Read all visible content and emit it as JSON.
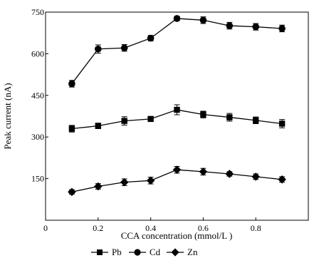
{
  "chart_data": {
    "type": "line",
    "xlabel": "CCA concentration (mmol/L )",
    "ylabel": "Peak current (nA)",
    "xlim": [
      0,
      1.0
    ],
    "ylim": [
      0,
      750
    ],
    "x_ticks": [
      0,
      0.2,
      0.4,
      0.6,
      0.8
    ],
    "x_tick_labels": [
      "0",
      "0.2",
      "0.4",
      "0.6",
      "0.8"
    ],
    "y_ticks": [
      150,
      300,
      450,
      600,
      750
    ],
    "y_tick_labels": [
      "150",
      "300",
      "450",
      "600",
      "750"
    ],
    "grid": false,
    "legend_position": "bottom",
    "x": [
      0.1,
      0.2,
      0.3,
      0.4,
      0.5,
      0.6,
      0.7,
      0.8,
      0.9
    ],
    "series": [
      {
        "name": "Pb",
        "marker": "square",
        "values": [
          330,
          340,
          358,
          365,
          398,
          381,
          371,
          360,
          348
        ],
        "errors": [
          12,
          10,
          15,
          8,
          18,
          12,
          14,
          12,
          15
        ]
      },
      {
        "name": "Cd",
        "marker": "circle",
        "values": [
          492,
          617,
          621,
          656,
          727,
          721,
          701,
          697,
          691
        ],
        "errors": [
          12,
          15,
          12,
          10,
          8,
          12,
          12,
          12,
          12
        ]
      },
      {
        "name": "Zn",
        "marker": "diamond",
        "values": [
          102,
          122,
          137,
          143,
          182,
          175,
          167,
          157,
          147
        ],
        "errors": [
          8,
          10,
          12,
          12,
          12,
          12,
          8,
          10,
          10
        ]
      }
    ]
  }
}
